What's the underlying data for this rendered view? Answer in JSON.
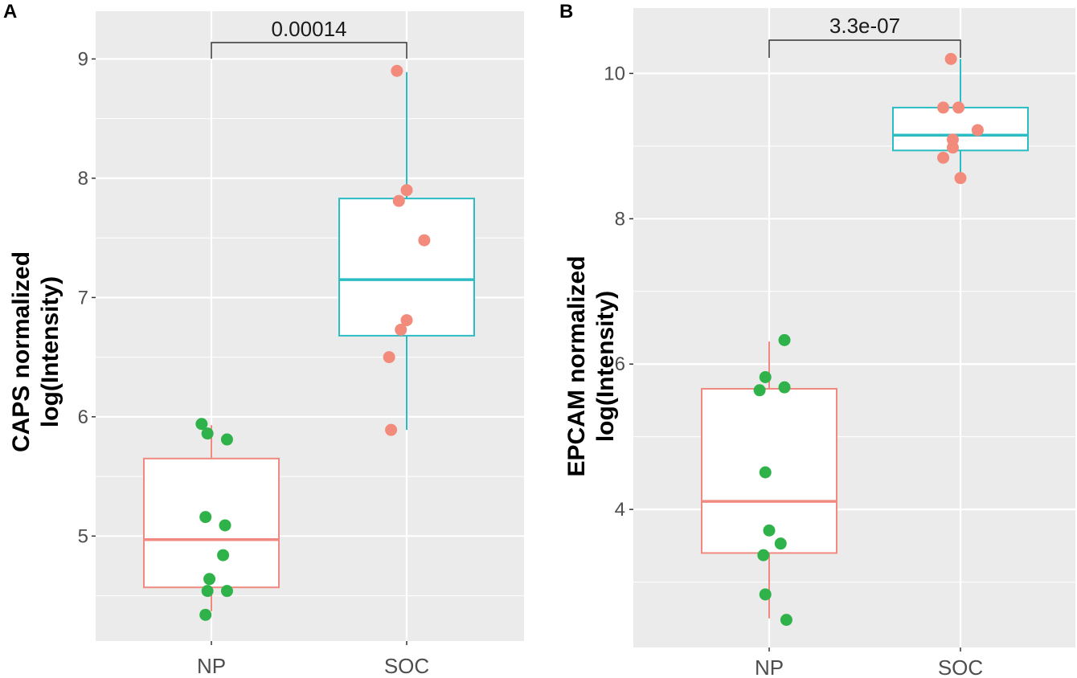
{
  "colors": {
    "panel_bg": "#ebebeb",
    "grid": "#ffffff",
    "np_box": "#f08a80",
    "soc_box": "#2bbcc4",
    "np_point": "#2fb24a",
    "soc_point": "#f28b7b",
    "bracket": "#333333"
  },
  "chart_data": [
    {
      "type": "box",
      "panel_label": "A",
      "ylabel_lines": [
        "CAPS normalized",
        "log(Intensity)"
      ],
      "categories": [
        "NP",
        "SOC"
      ],
      "yticks": [
        5,
        6,
        7,
        8,
        9
      ],
      "ylim": [
        4.12,
        9.4
      ],
      "pvalue": "0.00014",
      "boxes": [
        {
          "group": "NP",
          "whisker_low": 4.37,
          "q1": 4.57,
          "median": 4.97,
          "q3": 5.65,
          "whisker_high": 5.93
        },
        {
          "group": "SOC",
          "whisker_low": 5.89,
          "q1": 6.68,
          "median": 7.15,
          "q3": 7.83,
          "whisker_high": 8.89
        }
      ],
      "points": [
        {
          "group": "NP",
          "jitter": -0.05,
          "value": 5.94
        },
        {
          "group": "NP",
          "jitter": -0.02,
          "value": 5.86
        },
        {
          "group": "NP",
          "jitter": 0.08,
          "value": 5.81
        },
        {
          "group": "NP",
          "jitter": -0.03,
          "value": 5.16
        },
        {
          "group": "NP",
          "jitter": 0.07,
          "value": 5.09
        },
        {
          "group": "NP",
          "jitter": 0.06,
          "value": 4.84
        },
        {
          "group": "NP",
          "jitter": -0.01,
          "value": 4.64
        },
        {
          "group": "NP",
          "jitter": -0.02,
          "value": 4.54
        },
        {
          "group": "NP",
          "jitter": 0.08,
          "value": 4.54
        },
        {
          "group": "NP",
          "jitter": -0.03,
          "value": 4.34
        },
        {
          "group": "SOC",
          "jitter": -0.05,
          "value": 8.9
        },
        {
          "group": "SOC",
          "jitter": 0.0,
          "value": 7.9
        },
        {
          "group": "SOC",
          "jitter": -0.04,
          "value": 7.81
        },
        {
          "group": "SOC",
          "jitter": 0.09,
          "value": 7.48
        },
        {
          "group": "SOC",
          "jitter": 0.0,
          "value": 6.81
        },
        {
          "group": "SOC",
          "jitter": -0.03,
          "value": 6.73
        },
        {
          "group": "SOC",
          "jitter": -0.09,
          "value": 6.5
        },
        {
          "group": "SOC",
          "jitter": -0.08,
          "value": 5.89
        }
      ]
    },
    {
      "type": "box",
      "panel_label": "B",
      "ylabel_lines": [
        "EPCAM normalized",
        "log(Intensity)"
      ],
      "categories": [
        "NP",
        "SOC"
      ],
      "yticks": [
        4,
        6,
        8,
        10
      ],
      "ylim": [
        2.1,
        10.9
      ],
      "pvalue": "3.3e-07",
      "boxes": [
        {
          "group": "NP",
          "whisker_low": 2.5,
          "q1": 3.4,
          "median": 4.11,
          "q3": 5.66,
          "whisker_high": 6.31
        },
        {
          "group": "SOC",
          "whisker_low": 8.55,
          "q1": 8.94,
          "median": 9.15,
          "q3": 9.53,
          "whisker_high": 10.2
        }
      ],
      "points": [
        {
          "group": "NP",
          "jitter": 0.08,
          "value": 6.33
        },
        {
          "group": "NP",
          "jitter": -0.02,
          "value": 5.82
        },
        {
          "group": "NP",
          "jitter": 0.08,
          "value": 5.68
        },
        {
          "group": "NP",
          "jitter": -0.05,
          "value": 5.64
        },
        {
          "group": "NP",
          "jitter": -0.02,
          "value": 4.51
        },
        {
          "group": "NP",
          "jitter": 0.0,
          "value": 3.71
        },
        {
          "group": "NP",
          "jitter": 0.06,
          "value": 3.53
        },
        {
          "group": "NP",
          "jitter": -0.03,
          "value": 3.37
        },
        {
          "group": "NP",
          "jitter": -0.02,
          "value": 2.83
        },
        {
          "group": "NP",
          "jitter": 0.09,
          "value": 2.48
        },
        {
          "group": "SOC",
          "jitter": -0.05,
          "value": 10.2
        },
        {
          "group": "SOC",
          "jitter": -0.09,
          "value": 9.53
        },
        {
          "group": "SOC",
          "jitter": -0.01,
          "value": 9.53
        },
        {
          "group": "SOC",
          "jitter": 0.09,
          "value": 9.22
        },
        {
          "group": "SOC",
          "jitter": -0.04,
          "value": 9.09
        },
        {
          "group": "SOC",
          "jitter": -0.04,
          "value": 8.98
        },
        {
          "group": "SOC",
          "jitter": -0.09,
          "value": 8.84
        },
        {
          "group": "SOC",
          "jitter": 0.0,
          "value": 8.56
        }
      ]
    }
  ]
}
